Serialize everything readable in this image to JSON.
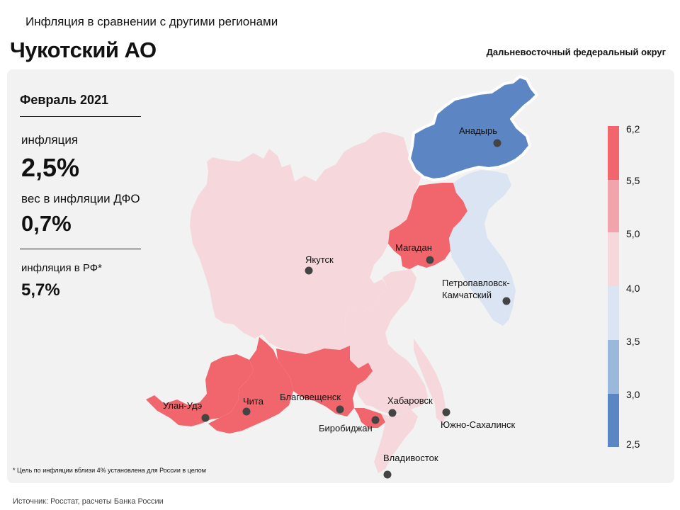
{
  "header": {
    "subtitle": "Инфляция в сравнении с другими регионами",
    "title": "Чукотский АО",
    "district": "Дальневосточный федеральный округ"
  },
  "stats": {
    "period": "Февраль 2021",
    "inflation_label": "инфляция",
    "inflation_value": "2,5%",
    "weight_label": "вес в инфляции ДФО",
    "weight_value": "0,7%",
    "rf_label": "инфляция  в РФ*",
    "rf_value": "5,7%"
  },
  "footnote": "* Цель по инфляции вблизи 4% установлена для России в целом",
  "source": "Источник: Росстат, расчеты Банка России",
  "colors": {
    "panel": "#f2f2f2",
    "band_2_5_3_0": "#5b86c3",
    "band_3_0_3_5": "#9bb7dc",
    "band_3_5_4_0": "#dbe4f2",
    "band_4_0_5_0": "#f6d8dc",
    "band_5_0_5_5": "#f1a4ab",
    "band_5_5_6_2": "#f0666c",
    "highlight_outline": "#ffffff"
  },
  "map": {
    "highlighted_region": "Чукотский АО",
    "regions": [
      {
        "name": "Якутия",
        "city": "Якутск",
        "band": "4,0–5,0"
      },
      {
        "name": "Чукотский АО",
        "city": "Анадырь",
        "band": "2,5–3,0"
      },
      {
        "name": "Магаданская область",
        "city": "Магадан",
        "band": "5,5–6,2"
      },
      {
        "name": "Камчатский край",
        "city": "Петропавловск-Камчатский",
        "band": "3,5–4,0"
      },
      {
        "name": "Бурятия",
        "city": "Улан-Удэ",
        "band": "5,5–6,2"
      },
      {
        "name": "Забайкальский край",
        "city": "Чита",
        "band": "5,5–6,2"
      },
      {
        "name": "Амурская область",
        "city": "Благовещенск",
        "band": "5,5–6,2"
      },
      {
        "name": "Еврейская АО",
        "city": "Биробиджан",
        "band": "5,5–6,2"
      },
      {
        "name": "Хабаровский край",
        "city": "Хабаровск",
        "band": "4,0–5,0"
      },
      {
        "name": "Сахалинская область",
        "city": "Южно-Сахалинск",
        "band": "4,0–5,0"
      },
      {
        "name": "Приморский край",
        "city": "Владивосток",
        "band": "4,0–5,0"
      }
    ],
    "city_labels": {
      "anadyr": "Анадырь",
      "yakutsk": "Якутск",
      "magadan": "Магадан",
      "petropavlovsk": "Петропавловск-\nКамчатский",
      "ulanude": "Улан-Удэ",
      "chita": "Чита",
      "blagoveshchensk": "Благовещенск",
      "birobidzhan": "Биробиджан",
      "khabarovsk": "Хабаровск",
      "yuzhno": "Южно-Сахалинск",
      "vladivostok": "Владивосток"
    }
  },
  "scale": {
    "ticks": [
      "6,2",
      "5,5",
      "5,0",
      "4,0",
      "3,5",
      "3,0",
      "2,5"
    ]
  }
}
